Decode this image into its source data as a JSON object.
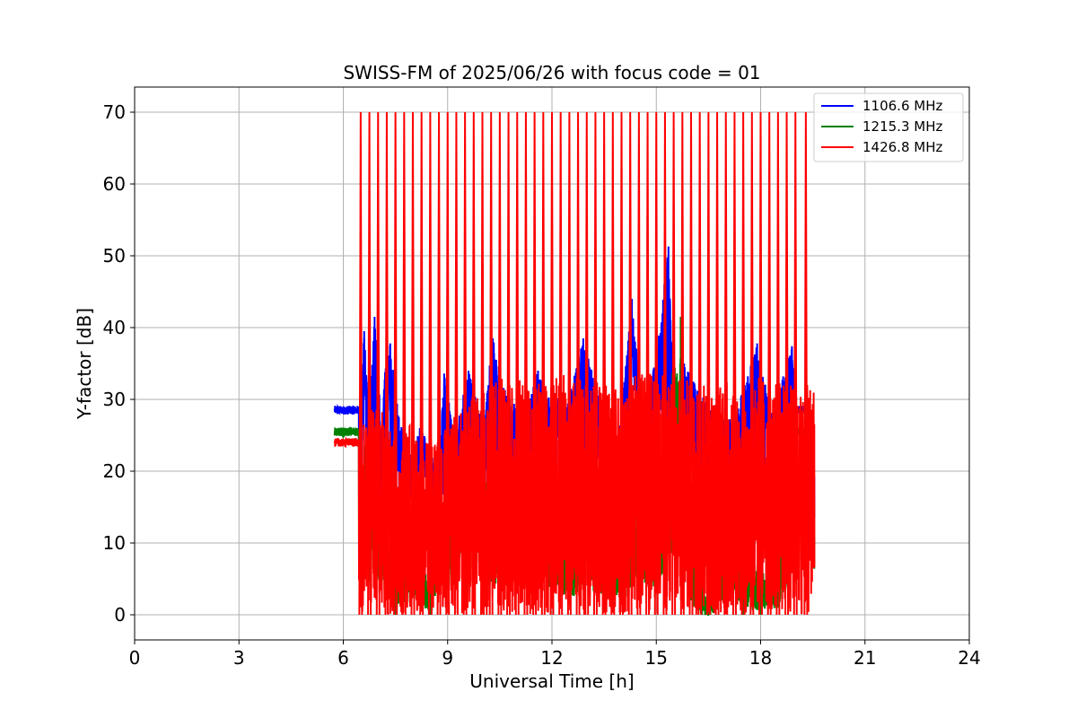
{
  "chart_data": {
    "type": "line",
    "title": "SWISS-FM of 2025/06/26 with focus code = 01",
    "xlabel": "Universal Time [h]",
    "ylabel": "Y-factor [dB]",
    "xlim": [
      0,
      24
    ],
    "ylim": [
      -3.5,
      73.5
    ],
    "xticks": [
      0,
      3,
      6,
      9,
      12,
      15,
      18,
      21,
      24
    ],
    "yticks": [
      0,
      10,
      20,
      30,
      40,
      50,
      60,
      70
    ],
    "grid": true,
    "legend_position": "top-right",
    "series": [
      {
        "name": "1106.6 MHz",
        "color": "#0000ff",
        "data_start_h": 5.75,
        "data_end_h": 19.55,
        "baseline_db": 28.5,
        "points": [
          [
            5.75,
            29.0
          ],
          [
            5.9,
            28.6
          ],
          [
            6.1,
            28.4
          ],
          [
            6.3,
            28.5
          ],
          [
            6.5,
            28.3
          ],
          [
            6.6,
            39.5
          ],
          [
            6.75,
            28.0
          ],
          [
            6.9,
            41.5
          ],
          [
            7.1,
            26.0
          ],
          [
            7.2,
            33.8
          ],
          [
            7.35,
            37.8
          ],
          [
            7.6,
            27.5
          ],
          [
            7.9,
            22.0
          ],
          [
            8.2,
            26.0
          ],
          [
            8.5,
            24.5
          ],
          [
            8.7,
            17.0
          ],
          [
            8.9,
            33.6
          ],
          [
            9.2,
            25.0
          ],
          [
            9.6,
            34.0
          ],
          [
            10.0,
            27.0
          ],
          [
            10.3,
            38.5
          ],
          [
            10.7,
            30.5
          ],
          [
            11.2,
            28.0
          ],
          [
            11.6,
            34.0
          ],
          [
            12.0,
            30.0
          ],
          [
            12.5,
            30.5
          ],
          [
            12.9,
            38.5
          ],
          [
            13.5,
            28.0
          ],
          [
            13.9,
            23.5
          ],
          [
            14.3,
            44.0
          ],
          [
            14.6,
            28.0
          ],
          [
            15.0,
            36.0
          ],
          [
            15.35,
            51.3
          ],
          [
            15.5,
            28.5
          ],
          [
            15.8,
            35.0
          ],
          [
            16.5,
            29.0
          ],
          [
            17.2,
            27.0
          ],
          [
            17.9,
            37.8
          ],
          [
            18.3,
            28.0
          ],
          [
            18.9,
            37.4
          ],
          [
            19.05,
            28.5
          ],
          [
            19.2,
            29.0
          ],
          [
            19.5,
            26.5
          ]
        ]
      },
      {
        "name": "1215.3 MHz",
        "color": "#008000",
        "data_start_h": 5.75,
        "data_end_h": 19.55,
        "baseline_db": 25.5,
        "points": [
          [
            5.75,
            25.8
          ],
          [
            6.0,
            25.4
          ],
          [
            6.3,
            25.6
          ],
          [
            6.5,
            25.5
          ],
          [
            7.0,
            19.5
          ],
          [
            7.5,
            8.0
          ],
          [
            8.0,
            12.0
          ],
          [
            8.5,
            6.0
          ],
          [
            9.0,
            20.0
          ],
          [
            9.5,
            25.0
          ],
          [
            10.0,
            24.5
          ],
          [
            10.5,
            14.0
          ],
          [
            11.0,
            20.0
          ],
          [
            11.5,
            26.0
          ],
          [
            12.0,
            18.0
          ],
          [
            12.5,
            10.0
          ],
          [
            13.0,
            21.0
          ],
          [
            13.5,
            14.0
          ],
          [
            14.0,
            13.0
          ],
          [
            14.5,
            18.0
          ],
          [
            15.0,
            19.0
          ],
          [
            15.7,
            41.5
          ],
          [
            16.0,
            10.0
          ],
          [
            16.5,
            3.0
          ],
          [
            17.0,
            14.0
          ],
          [
            17.5,
            8.0
          ],
          [
            18.0,
            7.0
          ],
          [
            18.5,
            9.0
          ],
          [
            19.0,
            25.5
          ],
          [
            19.3,
            25.7
          ]
        ]
      },
      {
        "name": "1426.8 MHz",
        "color": "#ff0000",
        "data_start_h": 5.75,
        "data_end_h": 19.55,
        "baseline_db": 24.0,
        "spike_peak_db": 70.0,
        "spike_times_h": [
          6.5,
          6.75,
          7.0,
          7.25,
          7.5,
          7.75,
          8.0,
          8.25,
          8.5,
          8.75,
          9.0,
          9.25,
          9.5,
          9.75,
          10.0,
          10.25,
          10.5,
          10.75,
          11.0,
          11.25,
          11.5,
          11.75,
          12.0,
          12.25,
          12.5,
          12.75,
          13.0,
          13.25,
          13.5,
          13.75,
          14.0,
          14.25,
          14.5,
          14.75,
          15.0,
          15.25,
          15.5,
          15.75,
          16.0,
          16.25,
          16.5,
          16.75,
          17.0,
          17.25,
          17.5,
          17.75,
          18.0,
          18.25,
          18.5,
          18.75,
          19.0,
          19.3
        ],
        "noise_max_db": [
          [
            6.5,
            26
          ],
          [
            7.0,
            30
          ],
          [
            7.5,
            24
          ],
          [
            8.0,
            27
          ],
          [
            8.5,
            24
          ],
          [
            9.0,
            27
          ],
          [
            9.5,
            30
          ],
          [
            10.0,
            31
          ],
          [
            10.5,
            33
          ],
          [
            11.0,
            33
          ],
          [
            11.5,
            32
          ],
          [
            12.0,
            33
          ],
          [
            12.5,
            34
          ],
          [
            13.0,
            33
          ],
          [
            13.5,
            33
          ],
          [
            14.0,
            31
          ],
          [
            14.5,
            34
          ],
          [
            15.0,
            34
          ],
          [
            15.5,
            33
          ],
          [
            16.0,
            33
          ],
          [
            16.5,
            32
          ],
          [
            17.0,
            33
          ],
          [
            17.5,
            29
          ],
          [
            18.0,
            34
          ],
          [
            18.5,
            33
          ],
          [
            19.0,
            32
          ],
          [
            19.5,
            32
          ]
        ]
      }
    ]
  }
}
